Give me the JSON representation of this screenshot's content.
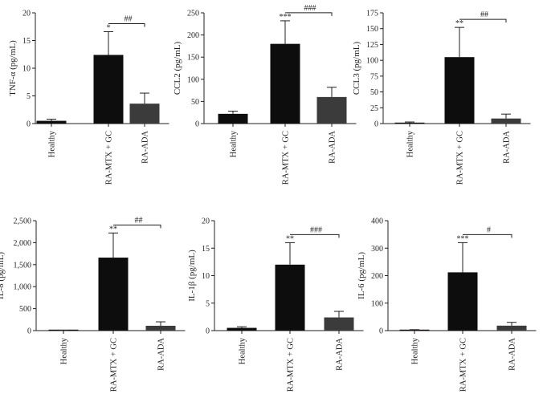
{
  "chart_data": [
    {
      "type": "bar",
      "ylabel": "TNF-α (pg/mL)",
      "categories": [
        "Healthy",
        "RA-MTX + GC",
        "RA-ADA"
      ],
      "values": [
        0.5,
        12.4,
        3.6
      ],
      "errors": [
        0.3,
        4.2,
        1.9
      ],
      "ylim": [
        0,
        20
      ],
      "yticks": [
        0,
        5,
        10,
        15,
        20
      ],
      "ytick_labels": [
        "0",
        "5",
        "10",
        "15",
        "20"
      ],
      "stars": "*",
      "hash": "##",
      "bar_colors": [
        "#0d0d0d",
        "#0d0d0d",
        "#3b3b3b"
      ]
    },
    {
      "type": "bar",
      "ylabel": "CCL2 (pg/mL)",
      "categories": [
        "Healthy",
        "RA-MTX + GC",
        "RA-ADA"
      ],
      "values": [
        22,
        180,
        60
      ],
      "errors": [
        6,
        52,
        22
      ],
      "ylim": [
        0,
        250
      ],
      "yticks": [
        0,
        50,
        100,
        150,
        200,
        250
      ],
      "ytick_labels": [
        "0",
        "50",
        "100",
        "150",
        "200",
        "250"
      ],
      "stars": "***",
      "hash": "###",
      "bar_colors": [
        "#0d0d0d",
        "#0d0d0d",
        "#3b3b3b"
      ]
    },
    {
      "type": "bar",
      "ylabel": "CCL3 (pg/mL)",
      "categories": [
        "Healthy",
        "RA-MTX + GC",
        "RA-ADA"
      ],
      "values": [
        1.5,
        105,
        8
      ],
      "errors": [
        1,
        47,
        7
      ],
      "ylim": [
        0,
        175
      ],
      "yticks": [
        0,
        25,
        50,
        75,
        100,
        125,
        150,
        175
      ],
      "ytick_labels": [
        "0",
        "25",
        "50",
        "75",
        "100",
        "125",
        "150",
        "175"
      ],
      "stars": "**",
      "hash": "##",
      "bar_colors": [
        "#0d0d0d",
        "#0d0d0d",
        "#3b3b3b"
      ]
    },
    {
      "type": "bar",
      "ylabel": "IL-8 (pg/mL)",
      "categories": [
        "Healthy",
        "RA-MTX + GC",
        "RA-ADA"
      ],
      "values": [
        5,
        1660,
        110
      ],
      "errors": [
        3,
        560,
        90
      ],
      "ylim": [
        0,
        2500
      ],
      "yticks": [
        0,
        500,
        1000,
        1500,
        2000,
        2500
      ],
      "ytick_labels": [
        "0",
        "500",
        "1,000",
        "1,500",
        "2,000",
        "2,500"
      ],
      "stars": "**",
      "hash": "##",
      "bar_colors": [
        "#0d0d0d",
        "#0d0d0d",
        "#3b3b3b"
      ]
    },
    {
      "type": "bar",
      "ylabel": "IL-1β (pg/mL)",
      "categories": [
        "Healthy",
        "RA-MTX + GC",
        "RA-ADA"
      ],
      "values": [
        0.5,
        12.0,
        2.4
      ],
      "errors": [
        0.2,
        4.0,
        1.1
      ],
      "ylim": [
        0,
        20
      ],
      "yticks": [
        0,
        5,
        10,
        15,
        20
      ],
      "ytick_labels": [
        "0",
        "5",
        "10",
        "15",
        "20"
      ],
      "stars": "**",
      "hash": "###",
      "bar_colors": [
        "#0d0d0d",
        "#0d0d0d",
        "#3b3b3b"
      ]
    },
    {
      "type": "bar",
      "ylabel": "IL-6 (pg/mL)",
      "categories": [
        "Healthy",
        "RA-MTX + GC",
        "RA-ADA"
      ],
      "values": [
        2,
        212,
        18
      ],
      "errors": [
        1.5,
        108,
        12
      ],
      "ylim": [
        0,
        400
      ],
      "yticks": [
        0,
        100,
        200,
        300,
        400
      ],
      "ytick_labels": [
        "0",
        "100",
        "200",
        "300",
        "400"
      ],
      "stars": "***",
      "hash": "#",
      "bar_colors": [
        "#0d0d0d",
        "#0d0d0d",
        "#3b3b3b"
      ]
    }
  ]
}
